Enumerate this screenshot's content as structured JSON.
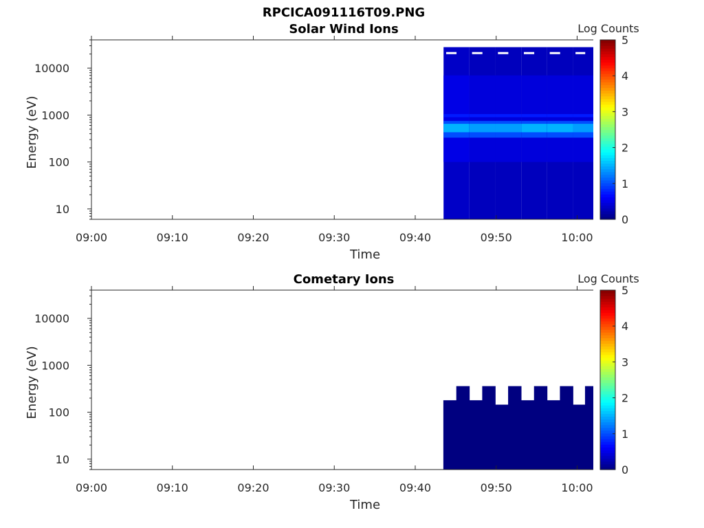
{
  "figure_title": "RPCICA091116T09.PNG",
  "chart_data": [
    {
      "type": "heatmap",
      "title": "Solar Wind Ions",
      "xlabel": "Time",
      "ylabel": "Energy (eV)",
      "x_ticks": [
        "09:00",
        "09:10",
        "09:20",
        "09:30",
        "09:40",
        "09:50",
        "10:00"
      ],
      "xlim": [
        "09:00",
        "10:02"
      ],
      "y_scale": "log",
      "y_ticks": [
        10,
        100,
        1000,
        10000
      ],
      "y_tick_labels": [
        "10",
        "100",
        "1000",
        "10000"
      ],
      "ylim": [
        6,
        40000
      ],
      "colorbar": {
        "label": "Log Counts",
        "range": [
          0,
          5
        ],
        "ticks": [
          "0",
          "1",
          "2",
          "3",
          "4",
          "5"
        ],
        "colormap": "jet"
      },
      "data_start_time": "09:43.5",
      "data_end_time": "10:02.5",
      "columns": [
        {
          "t0": "09:43.5",
          "t1": "09:46.7",
          "top_eV": 28000,
          "peak_eV": 550,
          "peak_log_counts": 1.5,
          "background_log_counts": 0.35
        },
        {
          "t0": "09:46.7",
          "t1": "09:49.9",
          "top_eV": 28000,
          "peak_eV": 550,
          "peak_log_counts": 1.4,
          "background_log_counts": 0.3
        },
        {
          "t0": "09:49.9",
          "t1": "09:53.1",
          "top_eV": 28000,
          "peak_eV": 550,
          "peak_log_counts": 1.4,
          "background_log_counts": 0.3
        },
        {
          "t0": "09:53.1",
          "t1": "09:56.3",
          "top_eV": 28000,
          "peak_eV": 550,
          "peak_log_counts": 1.5,
          "background_log_counts": 0.3
        },
        {
          "t0": "09:56.3",
          "t1": "09:59.5",
          "top_eV": 28000,
          "peak_eV": 550,
          "peak_log_counts": 1.5,
          "background_log_counts": 0.3
        },
        {
          "t0": "09:59.5",
          "t1": "10:02.5",
          "top_eV": 28000,
          "peak_eV": 550,
          "peak_log_counts": 1.4,
          "background_log_counts": 0.3
        }
      ]
    },
    {
      "type": "heatmap",
      "title": "Cometary Ions",
      "xlabel": "Time",
      "ylabel": "Energy (eV)",
      "x_ticks": [
        "09:00",
        "09:10",
        "09:20",
        "09:30",
        "09:40",
        "09:50",
        "10:00"
      ],
      "xlim": [
        "09:00",
        "10:02"
      ],
      "y_scale": "log",
      "y_ticks": [
        10,
        100,
        1000,
        10000
      ],
      "y_tick_labels": [
        "10",
        "100",
        "1000",
        "10000"
      ],
      "ylim": [
        6,
        40000
      ],
      "colorbar": {
        "label": "Log Counts",
        "range": [
          0,
          5
        ],
        "ticks": [
          "0",
          "1",
          "2",
          "3",
          "4",
          "5"
        ],
        "colormap": "jet"
      },
      "data_start_time": "09:43.5",
      "data_end_time": "10:02.5",
      "columns": [
        {
          "t0": "09:43.5",
          "t1": "09:45.1",
          "top_eV": 180,
          "log_counts": 0
        },
        {
          "t0": "09:45.1",
          "t1": "09:46.7",
          "top_eV": 360,
          "log_counts": 0
        },
        {
          "t0": "09:46.7",
          "t1": "09:48.3",
          "top_eV": 180,
          "log_counts": 0
        },
        {
          "t0": "09:48.3",
          "t1": "09:49.9",
          "top_eV": 360,
          "log_counts": 0
        },
        {
          "t0": "09:49.9",
          "t1": "09:51.5",
          "top_eV": 145,
          "log_counts": 0
        },
        {
          "t0": "09:51.5",
          "t1": "09:53.1",
          "top_eV": 360,
          "log_counts": 0
        },
        {
          "t0": "09:53.1",
          "t1": "09:54.7",
          "top_eV": 180,
          "log_counts": 0
        },
        {
          "t0": "09:54.7",
          "t1": "09:56.3",
          "top_eV": 360,
          "log_counts": 0
        },
        {
          "t0": "09:56.3",
          "t1": "09:57.9",
          "top_eV": 180,
          "log_counts": 0
        },
        {
          "t0": "09:57.9",
          "t1": "09:59.5",
          "top_eV": 360,
          "log_counts": 0
        },
        {
          "t0": "09:59.5",
          "t1": "10:01.0",
          "top_eV": 145,
          "log_counts": 0
        },
        {
          "t0": "10:01.0",
          "t1": "10:02.5",
          "top_eV": 360,
          "log_counts": 0
        }
      ]
    }
  ]
}
